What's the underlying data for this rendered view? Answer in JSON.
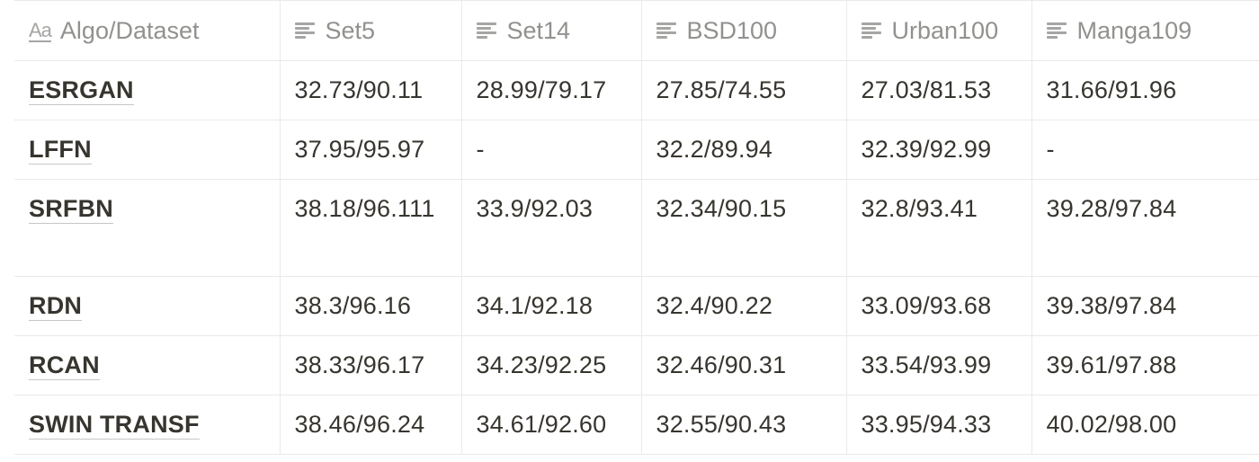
{
  "table": {
    "headers": [
      {
        "label": "Algo/Dataset",
        "icon": "title-property-icon"
      },
      {
        "label": "Set5",
        "icon": "text-property-icon"
      },
      {
        "label": "Set14",
        "icon": "text-property-icon"
      },
      {
        "label": "BSD100",
        "icon": "text-property-icon"
      },
      {
        "label": "Urban100",
        "icon": "text-property-icon"
      },
      {
        "label": "Manga109",
        "icon": "text-property-icon"
      }
    ],
    "title_icon_glyph": "Aa",
    "rows": [
      {
        "name": "ESRGAN",
        "values": [
          "32.73/90.11",
          "28.99/79.17",
          "27.85/74.55",
          "27.03/81.53",
          "31.66/91.96"
        ]
      },
      {
        "name": "LFFN",
        "values": [
          "37.95/95.97",
          "-",
          "32.2/89.94",
          "32.39/92.99",
          "-"
        ]
      },
      {
        "name": "SRFBN",
        "values": [
          "38.18/96.111",
          "33.9/92.03",
          "32.34/90.15",
          "32.8/93.41",
          "39.28/97.84"
        ]
      },
      {
        "name": "RDN",
        "values": [
          "38.3/96.16",
          "34.1/92.18",
          "32.4/90.22",
          "33.09/93.68",
          "39.38/97.84"
        ]
      },
      {
        "name": "RCAN",
        "values": [
          "38.33/96.17",
          "34.23/92.25",
          "32.46/90.31",
          "33.54/93.99",
          "39.61/97.88"
        ]
      },
      {
        "name": "SWIN TRANSF",
        "values": [
          "38.46/96.24",
          "34.61/92.60",
          "32.55/90.43",
          "33.95/94.33",
          "40.02/98.00"
        ]
      }
    ]
  },
  "colors": {
    "text": "#37352f",
    "header_text": "#91918e",
    "border": "#e9e9e7",
    "icon": "#a5a5a3"
  }
}
